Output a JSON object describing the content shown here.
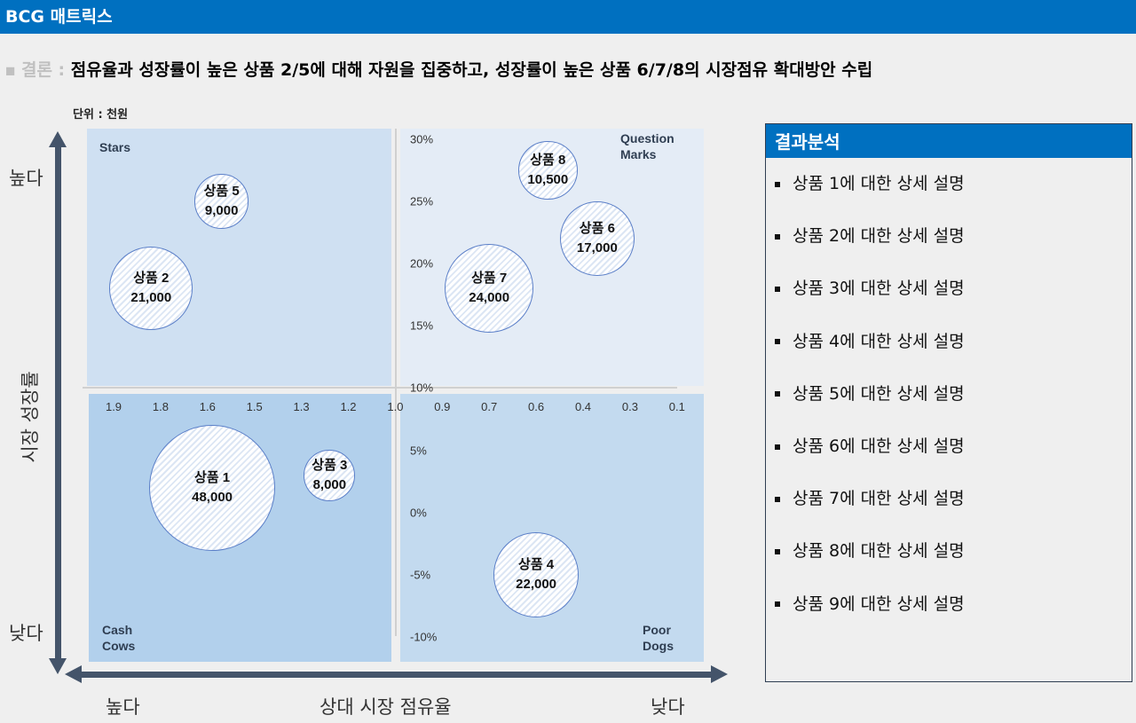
{
  "title": "BCG 매트릭스",
  "conclusion": {
    "label": "결론 :",
    "text": "점유율과 성장률이 높은 상품 2/5에 대해 자원을 집중하고, 성장률이 높은 상품 6/7/8의 시장점유 확대방안 수립"
  },
  "unit": "단위 : 천원",
  "colors": {
    "brand": "#0070c0",
    "stars": "#cfe0f2",
    "question_marks": "#e4ecf6",
    "cash_cows": "#b2d0ec",
    "dogs": "#c3daef",
    "axis": "#44546a"
  },
  "chart_data": {
    "type": "bubble",
    "xlabel": "상대 시장 점유율",
    "ylabel": "시장 성장률",
    "x_high_label": "높다",
    "x_low_label": "낮다",
    "y_high_label": "높다",
    "y_low_label": "낮다",
    "x_ticks": [
      "1.9",
      "1.8",
      "1.6",
      "1.5",
      "1.3",
      "1.2",
      "1.0",
      "0.9",
      "0.7",
      "0.6",
      "0.4",
      "0.3",
      "0.1"
    ],
    "y_ticks_top": [
      "30%",
      "25%",
      "20%",
      "15%",
      "10%"
    ],
    "y_ticks_bottom": [
      "5%",
      "0%",
      "-5%",
      "-10%"
    ],
    "quadrants": {
      "stars": "Stars",
      "question_marks": "Question Marks",
      "cash_cows": "Cash Cows",
      "dogs": "Poor Dogs"
    },
    "points": [
      {
        "label": "상품 1",
        "value_text": "48,000",
        "size": 48000,
        "x": 1.59,
        "y": 2
      },
      {
        "label": "상품 2",
        "value_text": "21,000",
        "size": 21000,
        "x": 1.82,
        "y": 18
      },
      {
        "label": "상품 3",
        "value_text": "8,000",
        "size": 8000,
        "x": 1.24,
        "y": 3
      },
      {
        "label": "상품 4",
        "value_text": "22,000",
        "size": 22000,
        "x": 0.6,
        "y": -5
      },
      {
        "label": "상품 5",
        "value_text": "9,000",
        "size": 9000,
        "x": 1.57,
        "y": 25
      },
      {
        "label": "상품 6",
        "value_text": "17,000",
        "size": 17000,
        "x": 0.37,
        "y": 22
      },
      {
        "label": "상품 7",
        "value_text": "24,000",
        "size": 24000,
        "x": 0.7,
        "y": 18
      },
      {
        "label": "상품 8",
        "value_text": "10,500",
        "size": 10500,
        "x": 0.55,
        "y": 27.5
      }
    ]
  },
  "panel": {
    "title": "결과분석",
    "items": [
      "상품 1에 대한 상세 설명",
      "상품 2에 대한 상세 설명",
      "상품 3에 대한 상세 설명",
      "상품 4에 대한 상세 설명",
      "상품 5에 대한 상세 설명",
      "상품 6에 대한 상세 설명",
      "상품 7에 대한 상세 설명",
      "상품 8에 대한 상세 설명",
      "상품 9에 대한 상세 설명"
    ]
  }
}
